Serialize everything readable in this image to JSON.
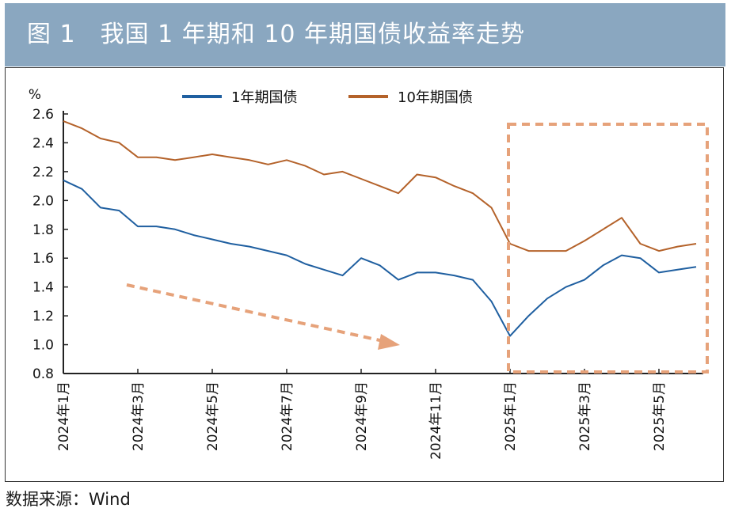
{
  "header": {
    "title": "图 1　我国 1 年期和 10 年期国债收益率走势"
  },
  "footer": {
    "source": "数据来源：Wind"
  },
  "colors": {
    "one_year": "#1f5fa0",
    "ten_year": "#b4622a",
    "highlight": "#e6a27a"
  },
  "chart_data": {
    "type": "line",
    "title": "",
    "xlabel": "",
    "ylabel": "%",
    "x_ticks": [
      "2024年1月",
      "2024年3月",
      "2024年5月",
      "2024年7月",
      "2024年9月",
      "2024年11月",
      "2025年1月",
      "2025年3月",
      "2025年5月"
    ],
    "ylim": [
      0.8,
      2.6
    ],
    "y_ticks": [
      "0.8",
      "1.0",
      "1.2",
      "1.4",
      "1.6",
      "1.8",
      "2.0",
      "2.2",
      "2.4",
      "2.6"
    ],
    "grid": false,
    "legend": "top-center",
    "x": [
      "2024-01",
      "2024-01",
      "2024-02",
      "2024-02",
      "2024-03",
      "2024-03",
      "2024-04",
      "2024-04",
      "2024-05",
      "2024-05",
      "2024-06",
      "2024-06",
      "2024-07",
      "2024-07",
      "2024-08",
      "2024-08",
      "2024-09",
      "2024-09",
      "2024-10",
      "2024-10",
      "2024-11",
      "2024-11",
      "2024-12",
      "2024-12",
      "2025-01",
      "2025-01",
      "2025-02",
      "2025-02",
      "2025-03",
      "2025-03",
      "2025-04",
      "2025-04",
      "2025-05",
      "2025-05",
      "2025-06"
    ],
    "series": [
      {
        "name": "1年期国债",
        "values": [
          2.14,
          2.08,
          1.95,
          1.93,
          1.82,
          1.82,
          1.8,
          1.76,
          1.73,
          1.7,
          1.68,
          1.65,
          1.62,
          1.56,
          1.52,
          1.48,
          1.6,
          1.55,
          1.45,
          1.5,
          1.5,
          1.48,
          1.45,
          1.3,
          1.06,
          1.2,
          1.32,
          1.4,
          1.45,
          1.55,
          1.62,
          1.6,
          1.5,
          1.52,
          1.54
        ]
      },
      {
        "name": "10年期国债",
        "values": [
          2.55,
          2.5,
          2.43,
          2.4,
          2.3,
          2.3,
          2.28,
          2.3,
          2.32,
          2.3,
          2.28,
          2.25,
          2.28,
          2.24,
          2.18,
          2.2,
          2.15,
          2.1,
          2.05,
          2.18,
          2.16,
          2.1,
          2.05,
          1.95,
          1.7,
          1.65,
          1.65,
          1.65,
          1.72,
          1.8,
          1.88,
          1.7,
          1.65,
          1.68,
          1.7
        ]
      }
    ],
    "annotations": [
      "trend-arrow-down",
      "highlight-box-2025"
    ]
  }
}
